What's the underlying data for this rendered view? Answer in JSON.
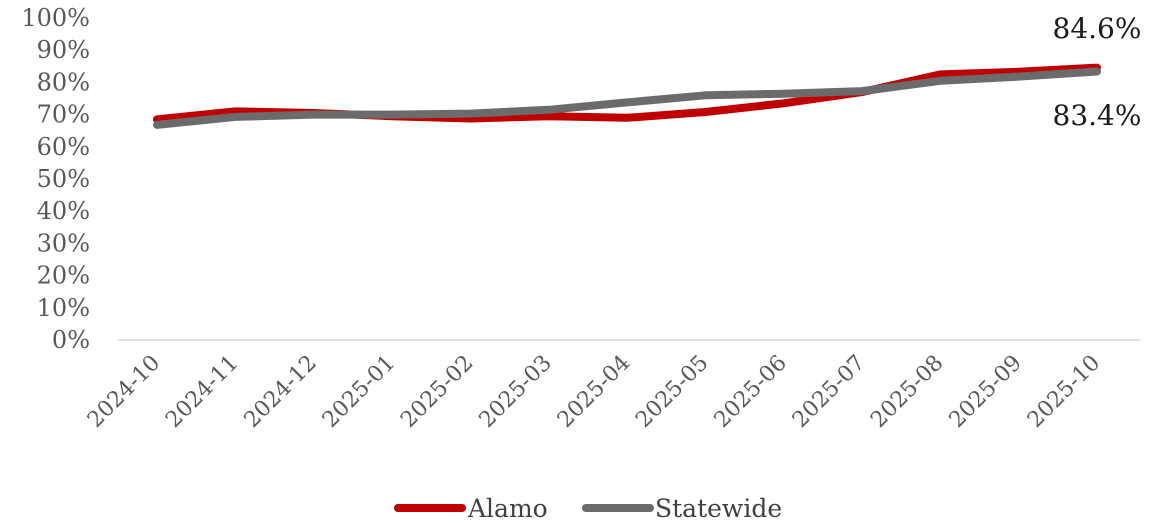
{
  "chart_data": {
    "type": "line",
    "title": "",
    "xlabel": "",
    "ylabel": "",
    "x": [
      "2024-10",
      "2024-11",
      "2024-12",
      "2025-01",
      "2025-02",
      "2025-03",
      "2025-04",
      "2025-05",
      "2025-06",
      "2025-07",
      "2025-08",
      "2025-09",
      "2025-10"
    ],
    "ylim": [
      0,
      100
    ],
    "yticks": [
      "0%",
      "10%",
      "20%",
      "30%",
      "40%",
      "50%",
      "60%",
      "70%",
      "80%",
      "90%",
      "100%"
    ],
    "grid": false,
    "legend": "bottom",
    "series": [
      {
        "name": "Alamo",
        "color": "#C00000",
        "values": [
          68.5,
          71.0,
          70.5,
          69.5,
          68.8,
          69.5,
          69.0,
          70.8,
          73.5,
          77.0,
          82.5,
          83.3,
          84.6
        ],
        "end_label": "84.6%"
      },
      {
        "name": "Statewide",
        "color": "#6B6B6B",
        "values": [
          66.8,
          69.3,
          70.0,
          70.0,
          70.3,
          71.5,
          73.8,
          76.0,
          76.5,
          77.3,
          80.5,
          81.8,
          83.4
        ],
        "end_label": "83.4%"
      }
    ]
  }
}
